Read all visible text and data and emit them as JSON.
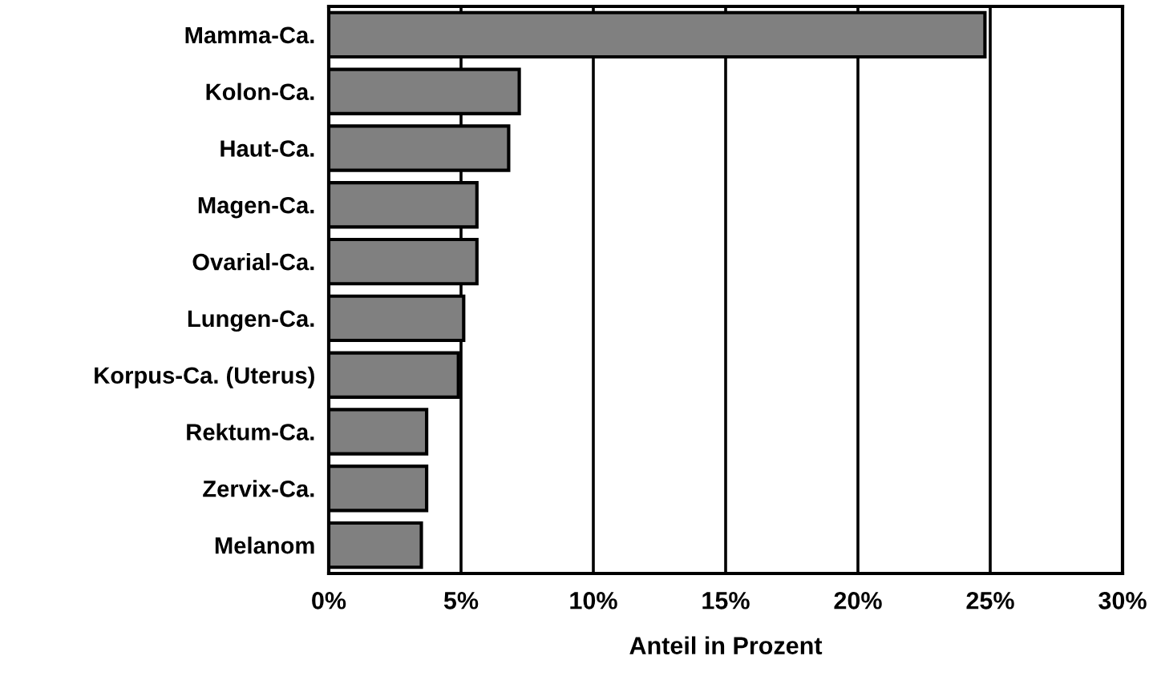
{
  "chart_data": {
    "type": "bar",
    "orientation": "horizontal",
    "xlabel": "Anteil in Prozent",
    "categories": [
      "Mamma-Ca.",
      "Kolon-Ca.",
      "Haut-Ca.",
      "Magen-Ca.",
      "Ovarial-Ca.",
      "Lungen-Ca.",
      "Korpus-Ca. (Uterus)",
      "Rektum-Ca.",
      "Zervix-Ca.",
      "Melanom"
    ],
    "values": [
      24.8,
      7.2,
      6.8,
      5.6,
      5.6,
      5.1,
      4.9,
      3.7,
      3.7,
      3.5
    ],
    "color": "#808080",
    "xlim": [
      0,
      30
    ],
    "xticks": [
      {
        "value": 0,
        "label": "0%"
      },
      {
        "value": 5,
        "label": "5%"
      },
      {
        "value": 10,
        "label": "10%"
      },
      {
        "value": 15,
        "label": "15%"
      },
      {
        "value": 20,
        "label": "20%"
      },
      {
        "value": 25,
        "label": "25%"
      },
      {
        "value": 30,
        "label": "30%"
      }
    ],
    "grid": "x",
    "legend": false
  }
}
